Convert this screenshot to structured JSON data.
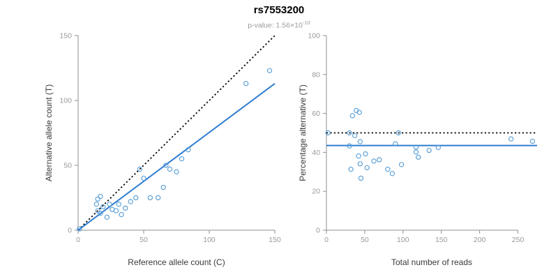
{
  "header": {
    "title": "rs7553200",
    "subtitle_label": "p-value:",
    "pvalue_mantissa": " 1.56×10",
    "pvalue_exponent": "-10"
  },
  "colors": {
    "fit_line_blue": "#2e7dd1",
    "point_blue": "#539bd5",
    "reference_black": "#000000",
    "axis_stroke": "#8f8f8f",
    "tick_label": "#999999",
    "axis_title": "#3a3a3a"
  },
  "chart_data": [
    {
      "type": "scatter",
      "title": "rs7553200",
      "xlabel": "Reference allele count (C)",
      "ylabel": "Alternative allele count (T)",
      "xlim": [
        0,
        150
      ],
      "ylim": [
        0,
        150
      ],
      "xticks": [
        0,
        50,
        100,
        150
      ],
      "yticks": [
        0,
        50,
        100,
        150
      ],
      "grid": false,
      "points": [
        [
          1,
          1
        ],
        [
          14,
          20
        ],
        [
          15,
          15
        ],
        [
          15,
          24
        ],
        [
          17,
          26
        ],
        [
          17,
          13
        ],
        [
          19,
          18
        ],
        [
          22,
          10
        ],
        [
          24,
          20
        ],
        [
          26,
          16
        ],
        [
          29,
          15
        ],
        [
          31,
          20
        ],
        [
          33,
          12
        ],
        [
          36,
          17
        ],
        [
          40,
          22
        ],
        [
          44,
          25
        ],
        [
          47,
          47
        ],
        [
          50,
          40
        ],
        [
          55,
          25
        ],
        [
          61,
          25
        ],
        [
          65,
          33
        ],
        [
          67,
          50
        ],
        [
          70,
          47
        ],
        [
          75,
          45
        ],
        [
          79,
          55
        ],
        [
          84,
          62
        ],
        [
          128,
          113
        ],
        [
          146,
          123
        ]
      ],
      "lines": [
        {
          "name": "identity-line",
          "style": "dotted",
          "color": "#000000",
          "x1": 0,
          "y1": 0,
          "x2": 150,
          "y2": 150
        },
        {
          "name": "fit-line",
          "style": "solid",
          "color": "#2e7dd1",
          "x1": 0,
          "y1": 0,
          "x2": 150,
          "y2": 113
        }
      ]
    },
    {
      "type": "scatter",
      "xlabel": "Total number of reads",
      "ylabel": "Percentage alternative (T)",
      "xlim": [
        0,
        275
      ],
      "ylim": [
        0,
        100
      ],
      "xticks": [
        0,
        50,
        100,
        150,
        200,
        250
      ],
      "yticks": [
        0,
        20,
        40,
        60,
        80,
        100
      ],
      "grid": false,
      "points": [
        [
          2,
          50
        ],
        [
          30,
          43.3
        ],
        [
          30,
          50
        ],
        [
          32,
          31.3
        ],
        [
          34,
          58.8
        ],
        [
          37,
          48.6
        ],
        [
          39,
          61.5
        ],
        [
          42,
          38.1
        ],
        [
          43,
          60.5
        ],
        [
          44,
          45.5
        ],
        [
          44,
          34.1
        ],
        [
          45,
          26.7
        ],
        [
          51,
          39.2
        ],
        [
          53,
          32.1
        ],
        [
          62,
          35.5
        ],
        [
          69,
          36.2
        ],
        [
          80,
          31.3
        ],
        [
          86,
          29.1
        ],
        [
          90,
          44.4
        ],
        [
          94,
          50
        ],
        [
          98,
          33.7
        ],
        [
          117,
          42.7
        ],
        [
          117,
          40.2
        ],
        [
          120,
          37.5
        ],
        [
          134,
          41
        ],
        [
          146,
          42.5
        ],
        [
          241,
          46.9
        ],
        [
          269,
          45.7
        ]
      ],
      "lines": [
        {
          "name": "fifty-percent-line",
          "style": "dotted",
          "color": "#000000",
          "x1": 0,
          "y1": 50,
          "x2": 275,
          "y2": 50
        },
        {
          "name": "mean-percentage-line",
          "style": "solid",
          "color": "#2e7dd1",
          "x1": 0,
          "y1": 43.5,
          "x2": 275,
          "y2": 43.5
        }
      ]
    }
  ]
}
